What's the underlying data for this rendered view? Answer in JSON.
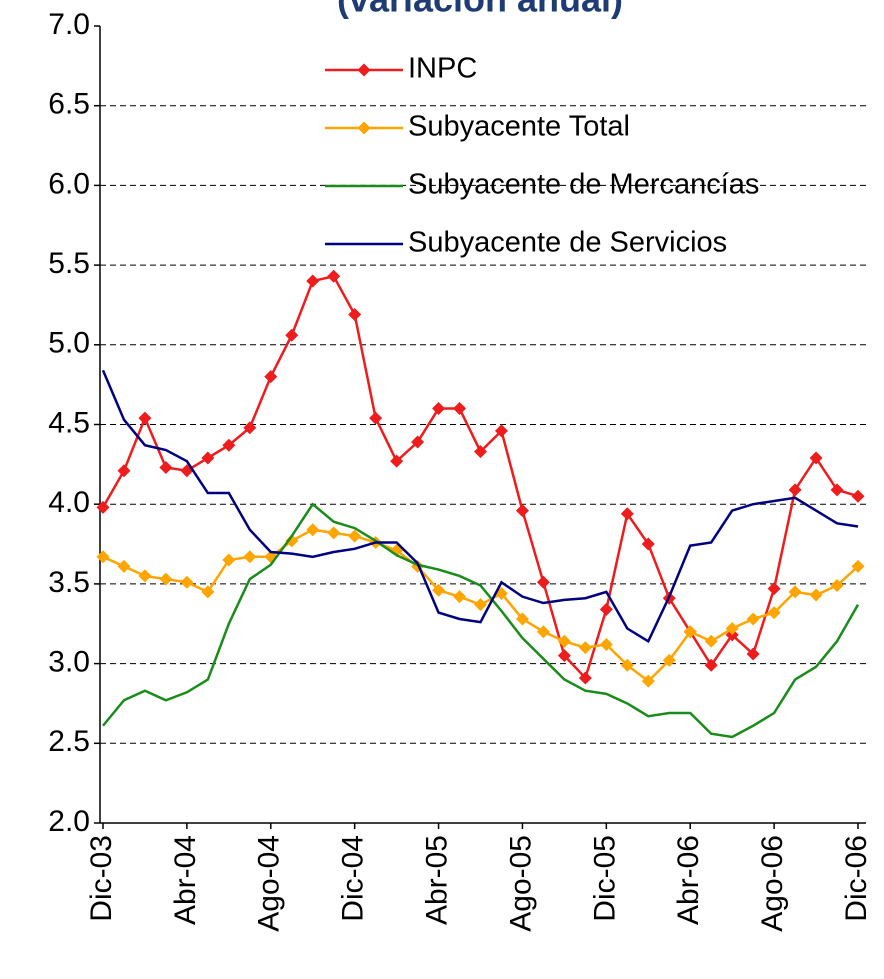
{
  "chart_data": {
    "type": "line",
    "title": "(variación anual)",
    "categories": [
      "Dic-03",
      null,
      null,
      null,
      "Abr-04",
      null,
      null,
      null,
      "Ago-04",
      null,
      null,
      null,
      "Dic-04",
      null,
      null,
      null,
      "Abr-05",
      null,
      null,
      null,
      "Ago-05",
      null,
      null,
      null,
      "Dic-05",
      null,
      null,
      null,
      "Abr-06",
      null,
      null,
      null,
      "Ago-06",
      null,
      null,
      null,
      "Dic-06"
    ],
    "series": [
      {
        "name": "INPC",
        "color": "#ee1c1c",
        "marker": "diamond",
        "values": [
          3.98,
          4.21,
          4.54,
          4.23,
          4.21,
          4.29,
          4.37,
          4.48,
          4.8,
          5.06,
          5.4,
          5.43,
          5.19,
          4.54,
          4.27,
          4.39,
          4.6,
          4.6,
          4.33,
          4.46,
          3.96,
          3.51,
          3.05,
          2.91,
          3.34,
          3.94,
          3.75,
          3.41,
          3.2,
          2.99,
          3.18,
          3.06,
          3.47,
          4.09,
          4.29,
          4.09,
          4.05
        ]
      },
      {
        "name": "Subyacente Total",
        "color": "#ffa500",
        "marker": "diamond",
        "values": [
          3.67,
          3.61,
          3.55,
          3.53,
          3.51,
          3.45,
          3.65,
          3.67,
          3.67,
          3.77,
          3.84,
          3.82,
          3.8,
          3.76,
          3.71,
          3.61,
          3.46,
          3.42,
          3.37,
          3.44,
          3.28,
          3.2,
          3.14,
          3.1,
          3.12,
          2.99,
          2.89,
          3.02,
          3.2,
          3.14,
          3.22,
          3.28,
          3.32,
          3.45,
          3.43,
          3.49,
          3.61
        ]
      },
      {
        "name": "Subyacente de Mercancías",
        "color": "#1a8c1a",
        "marker": "none",
        "values": [
          2.61,
          2.77,
          2.83,
          2.77,
          2.82,
          2.9,
          3.25,
          3.53,
          3.62,
          3.8,
          4.0,
          3.89,
          3.85,
          3.77,
          3.68,
          3.62,
          3.59,
          3.55,
          3.49,
          3.33,
          3.16,
          3.03,
          2.9,
          2.83,
          2.81,
          2.75,
          2.67,
          2.69,
          2.69,
          2.56,
          2.54,
          2.61,
          2.69,
          2.9,
          2.98,
          3.14,
          3.37
        ]
      },
      {
        "name": "Subyacente de Servicios",
        "color": "#000080",
        "marker": "none",
        "values": [
          4.84,
          4.53,
          4.37,
          4.34,
          4.27,
          4.07,
          4.07,
          3.84,
          3.7,
          3.69,
          3.67,
          3.7,
          3.72,
          3.76,
          3.76,
          3.63,
          3.32,
          3.28,
          3.26,
          3.51,
          3.42,
          3.38,
          3.4,
          3.41,
          3.45,
          3.22,
          3.14,
          3.42,
          3.74,
          3.76,
          3.96,
          4.0,
          4.02,
          4.04,
          3.96,
          3.88,
          3.86
        ]
      }
    ],
    "ylim": [
      2.0,
      7.0
    ],
    "yticks": [
      {
        "value": 2,
        "label": "2.0"
      },
      2.5,
      {
        "value": 3,
        "label": "3.0"
      },
      3.5,
      {
        "value": 4,
        "label": "4.0"
      },
      4.5,
      {
        "value": 5,
        "label": "5.0"
      },
      5.5,
      {
        "value": 6,
        "label": "6.0"
      },
      6.5,
      {
        "value": 7,
        "label": "7.0"
      }
    ],
    "grid": true,
    "legend": "top"
  }
}
